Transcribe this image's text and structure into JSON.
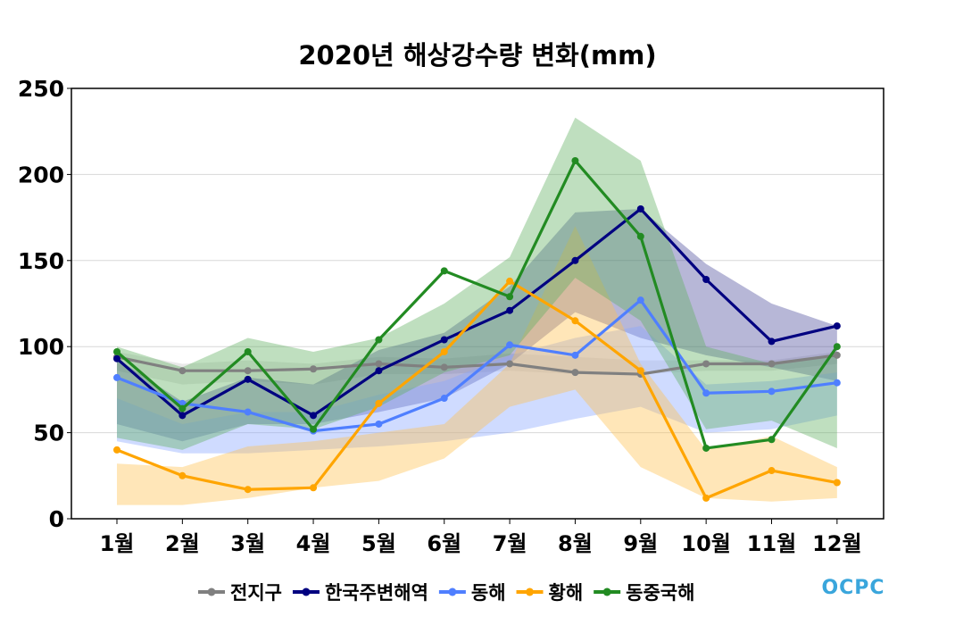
{
  "chart_data": {
    "type": "line",
    "title": "2020년 해상강수량 변화(mm)",
    "categories": [
      "1월",
      "2월",
      "3월",
      "4월",
      "5월",
      "6월",
      "7월",
      "8월",
      "9월",
      "10월",
      "11월",
      "12월"
    ],
    "ylim": [
      0,
      250
    ],
    "yticks": [
      0,
      50,
      100,
      150,
      200,
      250
    ],
    "grid": true,
    "legend_position": "bottom",
    "series": [
      {
        "name": "전지구",
        "color": "#808080",
        "values": [
          94,
          86,
          86,
          87,
          90,
          88,
          90,
          85,
          84,
          90,
          90,
          95
        ],
        "band": {
          "color": "#c8c8c8",
          "lower": [
            86,
            78,
            80,
            78,
            84,
            84,
            86,
            84,
            84,
            86,
            86,
            90
          ],
          "upper": [
            97,
            90,
            92,
            90,
            94,
            93,
            96,
            94,
            92,
            92,
            92,
            97
          ]
        }
      },
      {
        "name": "한국주변해역",
        "color": "#000080",
        "values": [
          93,
          60,
          81,
          60,
          86,
          104,
          121,
          150,
          180,
          139,
          103,
          112
        ],
        "band": {
          "color": "#4b4b9a",
          "lower": [
            55,
            45,
            55,
            55,
            62,
            70,
            90,
            120,
            105,
            95,
            88,
            80
          ],
          "upper": [
            93,
            68,
            82,
            78,
            98,
            108,
            135,
            178,
            180,
            148,
            125,
            112
          ]
        }
      },
      {
        "name": "동해",
        "color": "#4f7fff",
        "values": [
          82,
          67,
          62,
          51,
          55,
          70,
          101,
          95,
          127,
          73,
          74,
          79
        ],
        "band": {
          "color": "#86a6ff",
          "lower": [
            45,
            38,
            38,
            40,
            42,
            45,
            50,
            58,
            65,
            50,
            52,
            60
          ],
          "upper": [
            70,
            55,
            62,
            62,
            72,
            80,
            95,
            105,
            112,
            78,
            80,
            85
          ]
        }
      },
      {
        "name": "황해",
        "color": "#ffa500",
        "values": [
          40,
          25,
          17,
          18,
          67,
          97,
          138,
          115,
          86,
          12,
          28,
          21
        ],
        "band": {
          "color": "#ffc04d",
          "lower": [
            8,
            8,
            12,
            18,
            22,
            35,
            65,
            75,
            30,
            12,
            10,
            12
          ],
          "upper": [
            32,
            30,
            42,
            45,
            50,
            55,
            90,
            170,
            90,
            40,
            48,
            30
          ]
        }
      },
      {
        "name": "동중국해",
        "color": "#228b22",
        "values": [
          97,
          64,
          97,
          52,
          104,
          144,
          129,
          208,
          164,
          41,
          46,
          100
        ],
        "band": {
          "color": "#5fae5f",
          "lower": [
            47,
            40,
            55,
            52,
            65,
            85,
            95,
            140,
            115,
            52,
            57,
            41
          ],
          "upper": [
            100,
            88,
            105,
            97,
            105,
            125,
            152,
            233,
            208,
            100,
            90,
            95
          ]
        }
      }
    ]
  },
  "logo": {
    "text": "OCPC"
  }
}
